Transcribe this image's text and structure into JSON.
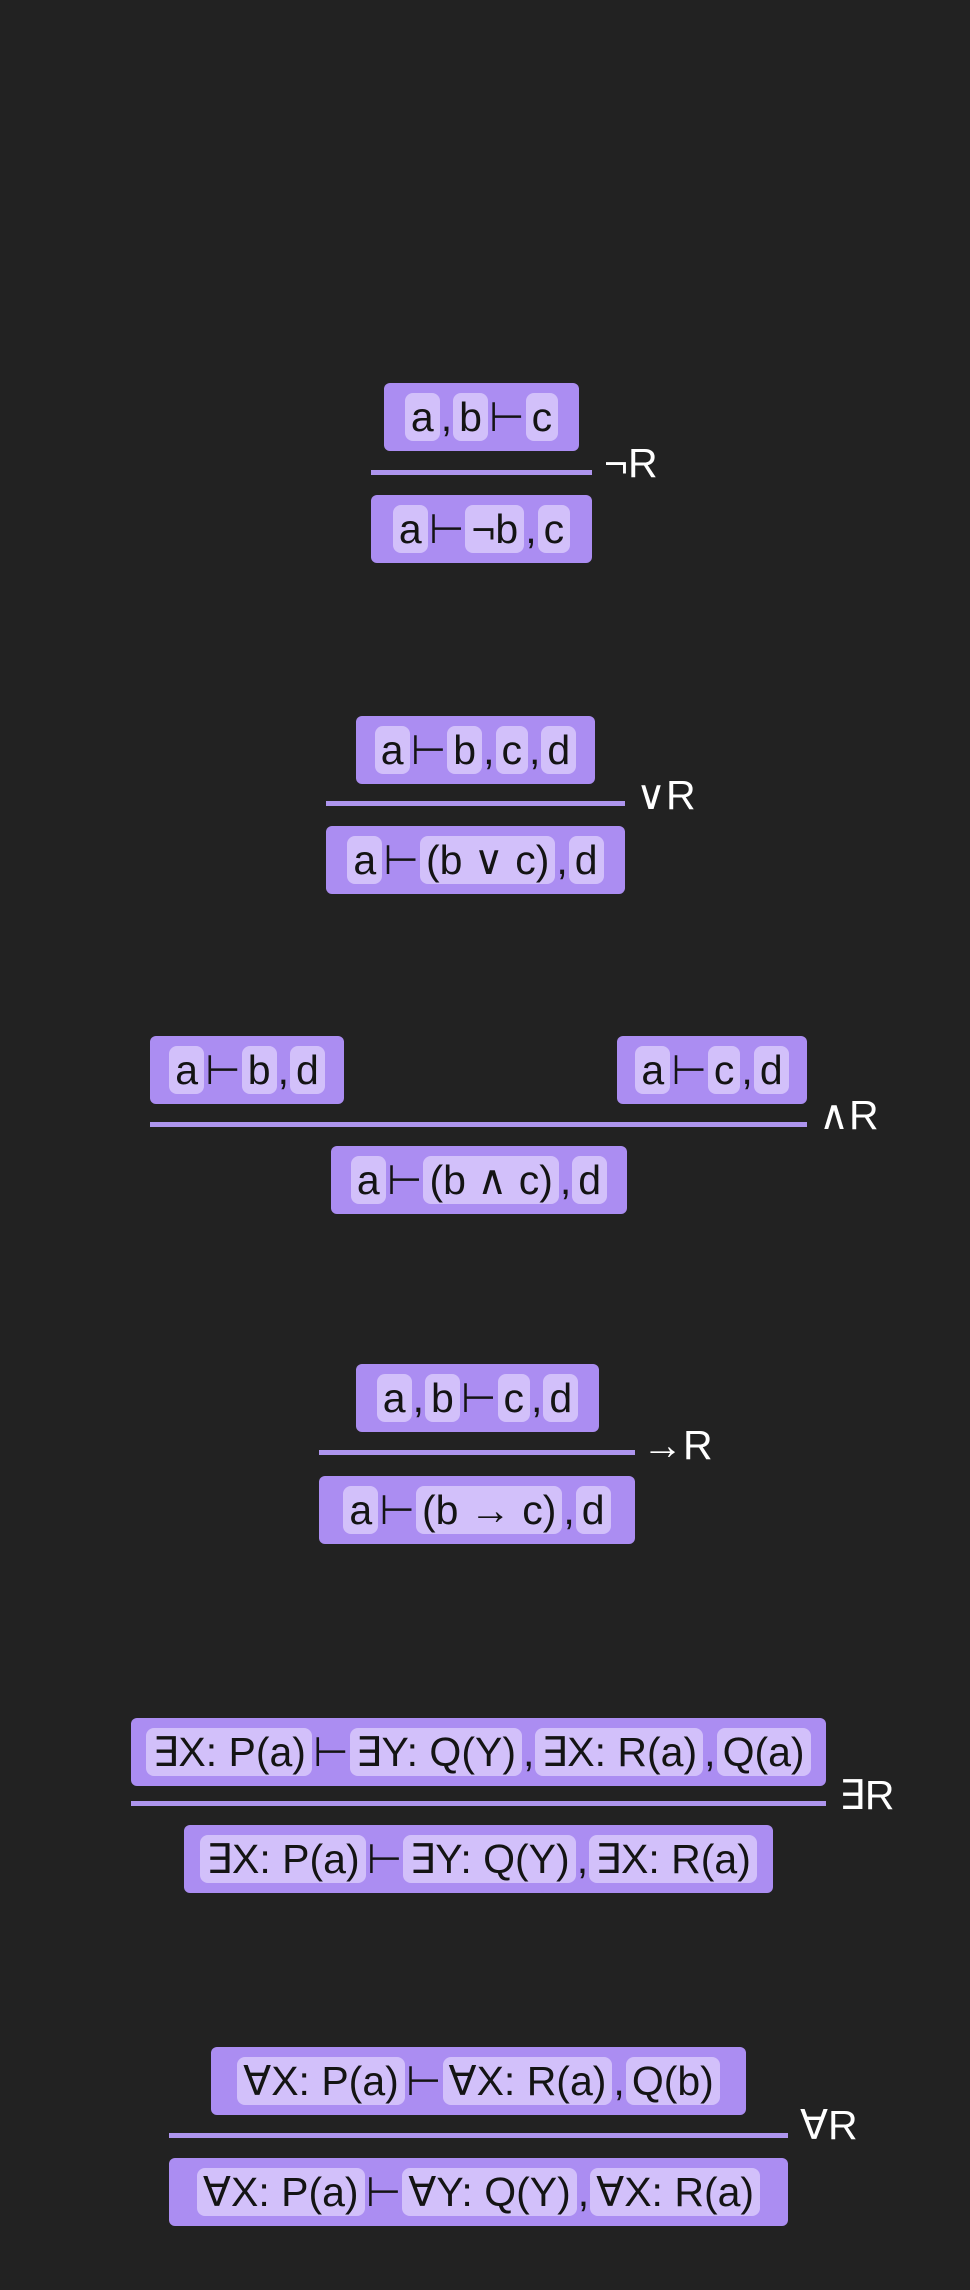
{
  "turnstile": "⊢",
  "separator": ",",
  "rules": [
    {
      "name": "¬R",
      "premises": [
        {
          "left": [
            "a",
            "b"
          ],
          "right": [
            "c"
          ]
        }
      ],
      "conclusion": {
        "left": [
          "a"
        ],
        "right": [
          "¬b",
          "c"
        ]
      }
    },
    {
      "name": "∨R",
      "premises": [
        {
          "left": [
            "a"
          ],
          "right": [
            "b",
            "c",
            "d"
          ]
        }
      ],
      "conclusion": {
        "left": [
          "a"
        ],
        "right": [
          "(b ∨ c)",
          "d"
        ]
      }
    },
    {
      "name": "∧R",
      "premises": [
        {
          "left": [
            "a"
          ],
          "right": [
            "b",
            "d"
          ]
        },
        {
          "left": [
            "a"
          ],
          "right": [
            "c",
            "d"
          ]
        }
      ],
      "conclusion": {
        "left": [
          "a"
        ],
        "right": [
          "(b ∧ c)",
          "d"
        ]
      }
    },
    {
      "name": "→R",
      "premises": [
        {
          "left": [
            "a",
            "b"
          ],
          "right": [
            "c",
            "d"
          ]
        }
      ],
      "conclusion": {
        "left": [
          "a"
        ],
        "right": [
          "(b → c)",
          "d"
        ]
      }
    },
    {
      "name": "∃R",
      "premises": [
        {
          "left": [
            "∃X: P(a)"
          ],
          "right": [
            "∃Y: Q(Y)",
            "∃X: R(a)",
            "Q(a)"
          ]
        }
      ],
      "conclusion": {
        "left": [
          "∃X: P(a)"
        ],
        "right": [
          "∃Y: Q(Y)",
          "∃X: R(a)"
        ]
      }
    },
    {
      "name": "∀R",
      "premises": [
        {
          "left": [
            "∀X: P(a)"
          ],
          "right": [
            "∀X: R(a)",
            "Q(b)"
          ]
        }
      ],
      "conclusion": {
        "left": [
          "∀X: P(a)"
        ],
        "right": [
          "∀Y: Q(Y)",
          "∀X: R(a)"
        ]
      }
    }
  ]
}
